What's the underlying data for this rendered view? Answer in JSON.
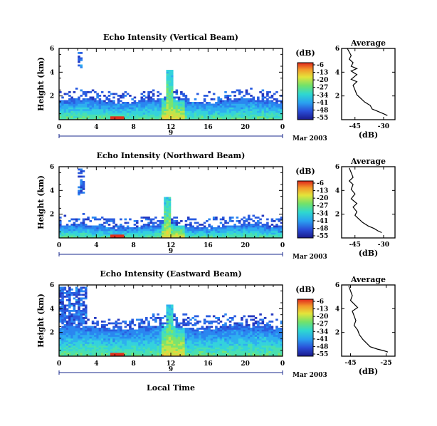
{
  "chart_data": [
    {
      "type": "heatmap",
      "title": "Echo Intensity (Vertical Beam)",
      "ylabel": "Height (km)",
      "ylim": [
        0,
        6
      ],
      "yticks": [
        2,
        4,
        6
      ],
      "xlim": [
        0,
        24
      ],
      "xticks": [
        "0",
        "4",
        "8",
        "12",
        "16",
        "20",
        "0"
      ],
      "day_label": "9",
      "date_label": "Mar 2003",
      "colorbar": {
        "label": "(dB)",
        "ticks": [
          "-6",
          "-13",
          "-20",
          "-27",
          "-34",
          "-41",
          "-48",
          "-55"
        ]
      },
      "features": {
        "layer_top_km": 1.6,
        "streak_hours": [
          2.0,
          2.6
        ],
        "streak_height_km": [
          4.4,
          5.9
        ],
        "plume_hour": 11.8,
        "plume_top_km": 4.2
      },
      "profile": {
        "title": "Average",
        "xlabel": "(dB)",
        "xticks": [
          "-45",
          "-30"
        ],
        "xlim": [
          -52,
          -24
        ],
        "points": [
          [
            -49,
            6.0
          ],
          [
            -48,
            5.7
          ],
          [
            -47,
            5.4
          ],
          [
            -48,
            5.1
          ],
          [
            -46,
            4.8
          ],
          [
            -47,
            4.5
          ],
          [
            -44,
            4.3
          ],
          [
            -47,
            4.1
          ],
          [
            -44,
            3.8
          ],
          [
            -47,
            3.4
          ],
          [
            -44,
            3.2
          ],
          [
            -46,
            2.9
          ],
          [
            -45,
            2.5
          ],
          [
            -44,
            2.1
          ],
          [
            -42,
            1.8
          ],
          [
            -40,
            1.5
          ],
          [
            -37,
            1.2
          ],
          [
            -36,
            0.9
          ],
          [
            -33,
            0.7
          ],
          [
            -30,
            0.5
          ],
          [
            -28,
            0.35
          ]
        ]
      }
    },
    {
      "type": "heatmap",
      "title": "Echo Intensity (Northward Beam)",
      "ylabel": "Height (km)",
      "ylim": [
        0,
        6
      ],
      "yticks": [
        2,
        4,
        6
      ],
      "xlim": [
        0,
        24
      ],
      "xticks": [
        "0",
        "4",
        "8",
        "12",
        "16",
        "20",
        "0"
      ],
      "day_label": "9",
      "date_label": "Mar 2003",
      "colorbar": {
        "label": "(dB)",
        "ticks": [
          "-6",
          "-13",
          "-20",
          "-27",
          "-34",
          "-41",
          "-48",
          "-55"
        ]
      },
      "features": {
        "layer_top_km": 1.0,
        "streak_hours": [
          2.0,
          2.8
        ],
        "streak_height_km": [
          3.6,
          5.9
        ],
        "plume_hour": 11.7,
        "plume_top_km": 3.5
      },
      "profile": {
        "title": "Average",
        "xlabel": "(dB)",
        "xticks": [
          "-45",
          "-30"
        ],
        "xlim": [
          -52,
          -24
        ],
        "points": [
          [
            -48,
            5.9
          ],
          [
            -47,
            5.5
          ],
          [
            -46,
            5.1
          ],
          [
            -48,
            4.8
          ],
          [
            -46,
            4.5
          ],
          [
            -47,
            4.1
          ],
          [
            -45,
            3.7
          ],
          [
            -47,
            3.3
          ],
          [
            -44,
            2.9
          ],
          [
            -46,
            2.6
          ],
          [
            -44,
            2.2
          ],
          [
            -45,
            1.9
          ],
          [
            -43,
            1.6
          ],
          [
            -41,
            1.3
          ],
          [
            -38,
            1.0
          ],
          [
            -35,
            0.8
          ],
          [
            -33,
            0.6
          ],
          [
            -31,
            0.45
          ]
        ]
      }
    },
    {
      "type": "heatmap",
      "title": "Echo Intensity (Eastward Beam)",
      "ylabel": "Height (km)",
      "ylim": [
        0,
        6
      ],
      "yticks": [
        2,
        4,
        6
      ],
      "xlim": [
        0,
        24
      ],
      "xticks": [
        "0",
        "4",
        "8",
        "12",
        "16",
        "20",
        "0"
      ],
      "day_label": "9",
      "date_label": "Mar 2003",
      "xlabel": "Local Time",
      "colorbar": {
        "label": "(dB)",
        "ticks": [
          "-6",
          "-13",
          "-20",
          "-27",
          "-34",
          "-41",
          "-48",
          "-55"
        ]
      },
      "features": {
        "layer_top_km": 2.4,
        "streak_hours": [
          0.0,
          3.0
        ],
        "streak_height_km": [
          2.5,
          5.9
        ],
        "plume_hour": 11.9,
        "plume_top_km": 4.3
      },
      "profile": {
        "title": "Average",
        "xlabel": "(dB)",
        "xticks": [
          "-45",
          "-25"
        ],
        "xlim": [
          -50,
          -20
        ],
        "points": [
          [
            -46,
            5.9
          ],
          [
            -45,
            5.5
          ],
          [
            -44,
            5.1
          ],
          [
            -45,
            4.7
          ],
          [
            -43,
            4.4
          ],
          [
            -41,
            4.1
          ],
          [
            -44,
            3.8
          ],
          [
            -43,
            3.4
          ],
          [
            -42,
            3.0
          ],
          [
            -43,
            2.6
          ],
          [
            -41,
            2.2
          ],
          [
            -40,
            1.8
          ],
          [
            -38,
            1.4
          ],
          [
            -36,
            1.1
          ],
          [
            -34,
            0.8
          ],
          [
            -30,
            0.6
          ],
          [
            -26,
            0.45
          ],
          [
            -24,
            0.35
          ]
        ]
      }
    }
  ]
}
